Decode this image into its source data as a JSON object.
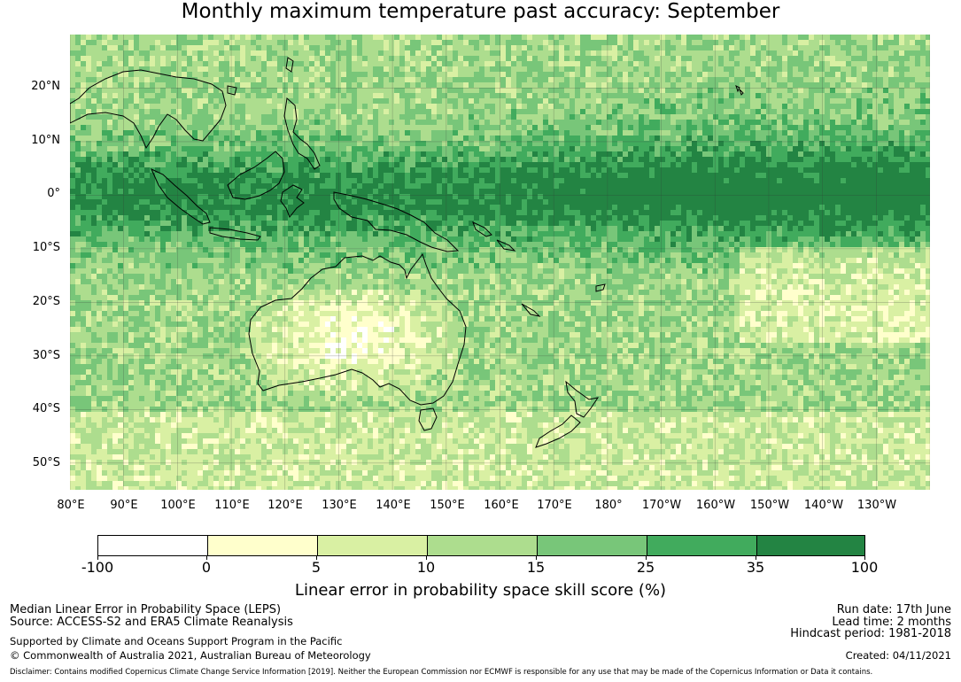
{
  "title": "Monthly maximum temperature past accuracy: September",
  "map": {
    "lat_labels": [
      "20°N",
      "10°N",
      "0°",
      "10°S",
      "20°S",
      "30°S",
      "40°S",
      "50°S"
    ],
    "lon_labels": [
      "80°E",
      "90°E",
      "100°E",
      "110°E",
      "120°E",
      "130°E",
      "140°E",
      "150°E",
      "160°E",
      "170°E",
      "180°",
      "170°W",
      "160°W",
      "150°W",
      "140°W",
      "130°W"
    ],
    "lat_range": [
      -55,
      30
    ],
    "lon_range": [
      80,
      240
    ]
  },
  "colorbar": {
    "ticks": [
      "-100",
      "0",
      "5",
      "10",
      "15",
      "25",
      "35",
      "100"
    ],
    "colors": [
      "#ffffff",
      "#ffffcc",
      "#d9f0a3",
      "#addd8e",
      "#78c679",
      "#41ab5d",
      "#238443"
    ],
    "label": "Linear error in probability space skill score (%)"
  },
  "footer": {
    "left_line1": "Median Linear Error in Probability Space (LEPS)",
    "left_line2": "Source: ACCESS-S2 and ERA5 Climate Reanalysis",
    "left_line3": "Supported by Climate and Oceans Support Program in the Pacific",
    "left_line4": "© Commonwealth of Australia 2021, Australian Bureau of Meteorology",
    "right_line1": "Run date: 17th June",
    "right_line2": "Lead time: 2 months",
    "right_line3": "Hindcast period: 1981-2018",
    "right_line4": "Created: 04/11/2021",
    "disclaimer": "Disclaimer: Contains modified Copernicus Climate Change Service Information [2019]. Neither the European Commission nor ECMWF is responsible for any use that may be made of the Copernicus Information or Data it contains."
  }
}
